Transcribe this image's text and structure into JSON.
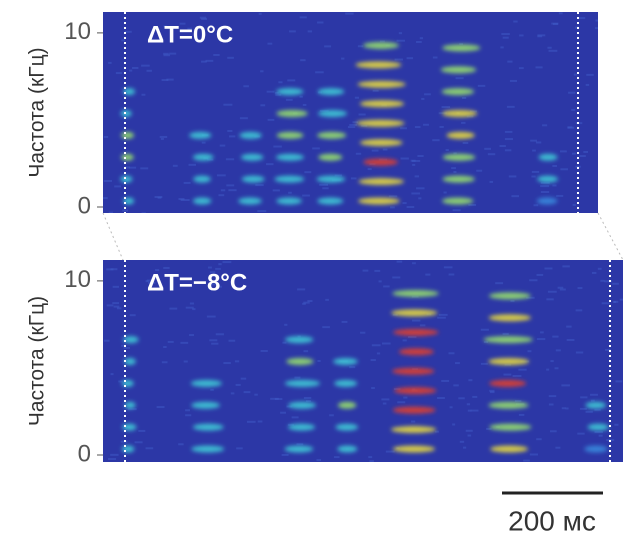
{
  "chart_data": [
    {
      "type": "spectrogram",
      "annotation": "ΔT=0°C",
      "ylabel": "Частота (кГц)",
      "ylim": [
        0,
        11.2
      ],
      "yticks": [
        0,
        10
      ]
    },
    {
      "type": "spectrogram",
      "annotation": "ΔT=−8°C",
      "ylabel": "Частота (кГц)",
      "ylim": [
        0,
        11.2
      ],
      "yticks": [
        0,
        10
      ]
    }
  ],
  "scale_bar": {
    "label": "200 мс"
  }
}
